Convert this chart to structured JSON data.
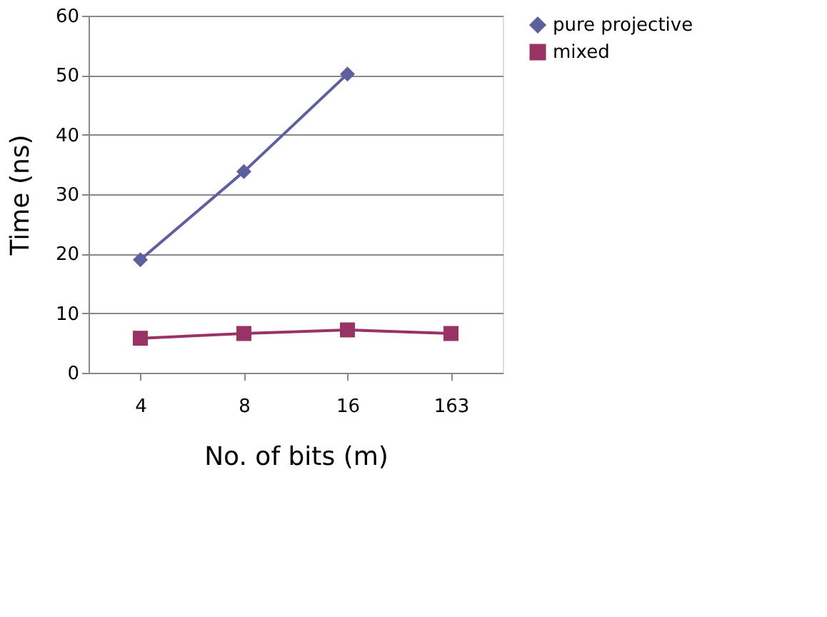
{
  "chart_data": {
    "type": "line",
    "xlabel": "No. of bits (m)",
    "ylabel": "Time (ns)",
    "categories": [
      "4",
      "8",
      "16",
      "163"
    ],
    "series": [
      {
        "name": "pure projective",
        "color": "#5f5f9f",
        "marker": "diamond",
        "values": [
          19,
          33.8,
          50.2,
          null
        ]
      },
      {
        "name": "mixed",
        "color": "#993366",
        "marker": "square",
        "values": [
          5.8,
          6.6,
          7.2,
          6.6
        ]
      }
    ],
    "ylim": [
      0,
      60
    ],
    "yticks": [
      0,
      10,
      20,
      30,
      40,
      50,
      60
    ],
    "grid": "y",
    "legend": "right"
  }
}
